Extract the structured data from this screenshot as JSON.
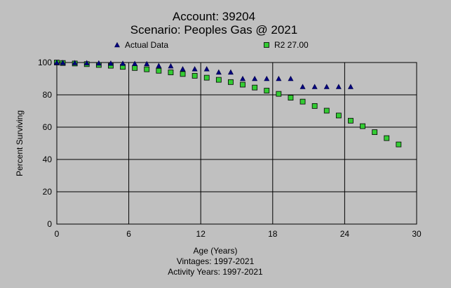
{
  "chart_data": {
    "type": "scatter",
    "title": "Account: 39204",
    "subtitle": "Scenario: Peoples Gas @ 2021",
    "xlabel": "Age (Years)",
    "ylabel": "Percent Surviving",
    "footer": [
      "Vintages: 1997-2021",
      "Activity Years: 1997-2021"
    ],
    "xlim": [
      0,
      30
    ],
    "ylim": [
      0,
      100
    ],
    "xticks": [
      0,
      6,
      12,
      18,
      24,
      30
    ],
    "yticks": [
      0,
      20,
      40,
      60,
      80,
      100
    ],
    "grid": true,
    "legend_position": "top",
    "series": [
      {
        "name": "Actual Data",
        "marker": "triangle",
        "color": "#000080",
        "points": [
          [
            0,
            100
          ],
          [
            0.5,
            99.9
          ],
          [
            1.5,
            99.8
          ],
          [
            2.5,
            99.7
          ],
          [
            3.5,
            99.6
          ],
          [
            4.5,
            99.5
          ],
          [
            5.5,
            99.4
          ],
          [
            6.5,
            99.3
          ],
          [
            7.5,
            99.2
          ],
          [
            8.5,
            98
          ],
          [
            9.5,
            97.8
          ],
          [
            10.5,
            96
          ],
          [
            11.5,
            96
          ],
          [
            12.5,
            96
          ],
          [
            13.5,
            94
          ],
          [
            14.5,
            94
          ],
          [
            15.5,
            90
          ],
          [
            16.5,
            90
          ],
          [
            17.5,
            90
          ],
          [
            18.5,
            90
          ],
          [
            19.5,
            90
          ],
          [
            20.5,
            85
          ],
          [
            21.5,
            85
          ],
          [
            22.5,
            85
          ],
          [
            23.5,
            85
          ],
          [
            24.5,
            85
          ]
        ]
      },
      {
        "name": "R2 27.00",
        "marker": "square",
        "color": "#33cc33",
        "points": [
          [
            0,
            100
          ],
          [
            0.5,
            99.7
          ],
          [
            1.5,
            99.4
          ],
          [
            2.5,
            99.0
          ],
          [
            3.5,
            98.5
          ],
          [
            4.5,
            98.0
          ],
          [
            5.5,
            97.3
          ],
          [
            6.5,
            96.6
          ],
          [
            7.5,
            95.8
          ],
          [
            8.5,
            94.9
          ],
          [
            9.5,
            93.9
          ],
          [
            10.5,
            92.9
          ],
          [
            11.5,
            91.8
          ],
          [
            12.5,
            90.6
          ],
          [
            13.5,
            89.3
          ],
          [
            14.5,
            87.9
          ],
          [
            15.5,
            86.3
          ],
          [
            16.5,
            84.5
          ],
          [
            17.5,
            82.6
          ],
          [
            18.5,
            80.6
          ],
          [
            19.5,
            78.2
          ],
          [
            20.5,
            75.8
          ],
          [
            21.5,
            73.1
          ],
          [
            22.5,
            70.2
          ],
          [
            23.5,
            67.2
          ],
          [
            24.5,
            64.0
          ],
          [
            25.5,
            60.6
          ],
          [
            26.5,
            56.9
          ],
          [
            27.5,
            53.2
          ],
          [
            28.5,
            49.3
          ]
        ]
      }
    ]
  }
}
